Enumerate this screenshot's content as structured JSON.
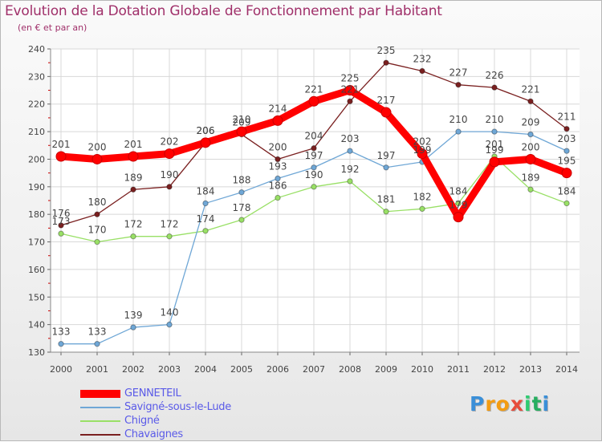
{
  "chart_data": {
    "type": "line",
    "title": "Evolution de la Dotation Globale de Fonctionnement par Habitant",
    "subtitle": "(en € et par an)",
    "xlabel": "",
    "ylabel": "",
    "x": [
      "2000",
      "2001",
      "2002",
      "2003",
      "2004",
      "2005",
      "2006",
      "2007",
      "2008",
      "2009",
      "2010",
      "2011",
      "2012",
      "2013",
      "2014"
    ],
    "ylim": [
      130,
      240
    ],
    "yticks": [
      130,
      140,
      150,
      160,
      170,
      180,
      190,
      200,
      210,
      220,
      230,
      240
    ],
    "grid": true,
    "legend_position": "bottom-left",
    "series": [
      {
        "name": "GENNETEIL",
        "color": "#ff0000",
        "values": [
          201,
          200,
          201,
          202,
          206,
          210,
          214,
          221,
          225,
          217,
          202,
          179,
          199,
          200,
          195
        ]
      },
      {
        "name": "Savigné-sous-le-Lude",
        "color": "#6fa7d6",
        "values": [
          133,
          133,
          139,
          140,
          184,
          188,
          193,
          197,
          203,
          197,
          199,
          210,
          210,
          209,
          203
        ]
      },
      {
        "name": "Chigné",
        "color": "#99e066",
        "values": [
          173,
          170,
          172,
          172,
          174,
          178,
          186,
          190,
          192,
          181,
          182,
          184,
          201,
          189,
          184
        ]
      },
      {
        "name": "Chavaignes",
        "color": "#7a2020",
        "values": [
          176,
          180,
          189,
          190,
          206,
          209,
          200,
          204,
          221,
          235,
          232,
          227,
          226,
          221,
          211
        ]
      }
    ]
  },
  "logo": {
    "text": "Proxiti",
    "letters": [
      "P",
      "r",
      "o",
      "x",
      "i",
      "t",
      "i"
    ],
    "colors": [
      "#3a8fd8",
      "#f39c12",
      "#f39c12",
      "#e74c3c",
      "#2ecc71",
      "#27ae60",
      "#3a8fd8"
    ]
  }
}
